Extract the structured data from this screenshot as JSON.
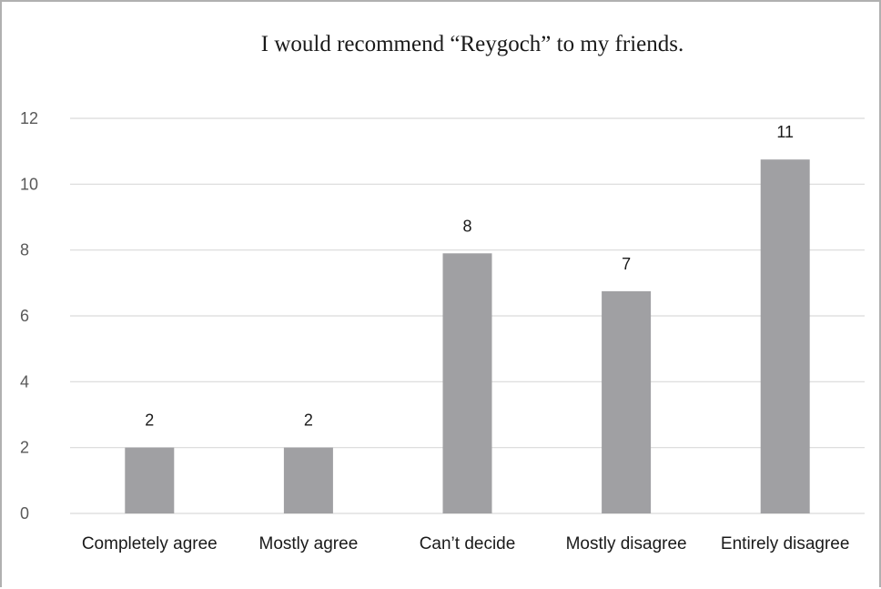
{
  "chart_data": {
    "type": "bar",
    "title": "I would recommend “Reygoch” to my friends.",
    "xlabel": "",
    "ylabel": "",
    "categories": [
      "Completely agree",
      "Mostly agree",
      "Can’t decide",
      "Mostly disagree",
      "Entirely disagree"
    ],
    "values": [
      2,
      2,
      7.9,
      6.75,
      10.75
    ],
    "data_labels": [
      "2",
      "2",
      "8",
      "7",
      "11"
    ],
    "ylim": [
      0,
      12
    ],
    "yticks": [
      0,
      2,
      4,
      6,
      8,
      10,
      12
    ],
    "ytick_labels": [
      "0",
      "2",
      "4",
      "6",
      "8",
      "10",
      "12"
    ],
    "grid": true,
    "legend": "none",
    "bar_color": "#a0a0a3",
    "grid_color": "#d9d9d9"
  }
}
